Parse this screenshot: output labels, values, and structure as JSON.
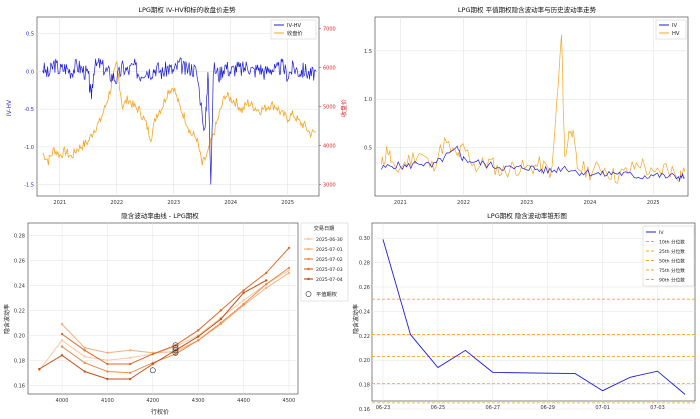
{
  "charts": [
    {
      "id": "p1",
      "title": "LPG期权 IV-HV和标的收盘价走势",
      "ylabel": "IV-HV",
      "y2label": "收盘价",
      "x_ticks": [
        "2021",
        "2022",
        "2023",
        "2024",
        "2025"
      ],
      "y_ticks": [
        "0.5",
        "0.0",
        "-0.5",
        "-1.0",
        "-1.5"
      ],
      "y2_ticks": [
        "7000",
        "6000",
        "5000",
        "4000",
        "3000"
      ],
      "legend": [
        "IV-HV",
        "收盘价"
      ],
      "colors": {
        "ivhv": "#1f1fd6",
        "close": "#f5a623",
        "y2axis": "#d62728"
      }
    },
    {
      "id": "p2",
      "title": "LPG期权 平值期权隐含波动率与历史波动率走势",
      "x_ticks": [
        "2021",
        "2022",
        "2023",
        "2024",
        "2025"
      ],
      "y_ticks": [
        "1.5",
        "1.0",
        "0.5"
      ],
      "legend": [
        "IV",
        "HV"
      ],
      "colors": {
        "iv": "#1f1fd6",
        "hv": "#f5a623"
      }
    },
    {
      "id": "p3",
      "title": "隐含波动率曲线 - LPG期权",
      "xlabel": "行权价",
      "ylabel": "隐含波动率",
      "x_ticks": [
        "4000",
        "4100",
        "4200",
        "4300",
        "4400",
        "4500"
      ],
      "y_ticks": [
        "0.28",
        "0.26",
        "0.24",
        "0.22",
        "0.20",
        "0.18",
        "0.16"
      ],
      "legend_title": "交易日期",
      "legend": [
        "2025-06-30",
        "2025-07-01",
        "2025-07-02",
        "2025-07-03",
        "2025-07-04"
      ],
      "atm_label": "平值期权",
      "colors": [
        "#f7c9a4",
        "#f4b07e",
        "#ef8a47",
        "#e06a2a",
        "#c4511a"
      ]
    },
    {
      "id": "p4",
      "title": "LPG期权 隐含波动率锥形图",
      "ylabel": "隐含波动率",
      "x_ticks": [
        "06-23",
        "06-25",
        "06-27",
        "06-29",
        "07-01",
        "07-03"
      ],
      "y_ticks": [
        "0.30",
        "0.28",
        "0.26",
        "0.24",
        "0.22",
        "0.20",
        "0.18",
        "0.16"
      ],
      "legend": [
        "IV",
        "10th 分位数",
        "25th 分位数",
        "50th 分位数",
        "75th 分位数",
        "90th 分位数"
      ],
      "colors": {
        "iv": "#1f1fd6",
        "pct": "#f5a623"
      }
    }
  ],
  "chart_data": [
    {
      "type": "line",
      "title": "LPG期权 IV-HV和标的收盘价走势",
      "xlim": [
        2020.6,
        2025.55
      ],
      "ylim": [
        -1.65,
        0.72
      ],
      "y2lim": [
        2700,
        7300
      ],
      "series": [
        {
          "name": "IV-HV",
          "axis": "left",
          "x": [
            2020.7,
            2020.8,
            2020.9,
            2021.0,
            2021.1,
            2021.2,
            2021.3,
            2021.4,
            2021.5,
            2021.55,
            2021.6,
            2021.7,
            2021.8,
            2021.9,
            2022.0,
            2022.1,
            2022.2,
            2022.3,
            2022.4,
            2022.5,
            2022.6,
            2022.7,
            2022.8,
            2022.9,
            2023.0,
            2023.1,
            2023.2,
            2023.3,
            2023.4,
            2023.55,
            2023.6,
            2023.65,
            2023.7,
            2023.8,
            2023.9,
            2024.0,
            2024.1,
            2024.2,
            2024.3,
            2024.4,
            2024.5,
            2024.6,
            2024.7,
            2024.8,
            2024.9,
            2025.0,
            2025.1,
            2025.2,
            2025.3,
            2025.4,
            2025.5
          ],
          "y": [
            0.05,
            -0.05,
            0.1,
            0.02,
            0.05,
            0.0,
            0.08,
            0.02,
            -0.05,
            -0.35,
            0.05,
            0.1,
            0.02,
            -0.05,
            -0.1,
            0.05,
            0.0,
            0.08,
            -0.05,
            0.02,
            0.0,
            0.05,
            -0.02,
            0.05,
            0.0,
            0.1,
            0.02,
            0.05,
            0.0,
            -0.8,
            0.02,
            -1.4,
            0.05,
            -0.05,
            0.08,
            0.0,
            0.05,
            0.02,
            0.08,
            0.0,
            0.05,
            -0.02,
            0.05,
            0.0,
            0.08,
            -0.05,
            0.05,
            0.0,
            0.02,
            -0.05,
            0.0
          ]
        },
        {
          "name": "收盘价",
          "axis": "right",
          "x": [
            2020.7,
            2020.8,
            2020.9,
            2021.0,
            2021.1,
            2021.2,
            2021.3,
            2021.4,
            2021.5,
            2021.6,
            2021.7,
            2021.8,
            2021.9,
            2022.0,
            2022.1,
            2022.2,
            2022.3,
            2022.4,
            2022.5,
            2022.6,
            2022.7,
            2022.8,
            2022.9,
            2023.0,
            2023.1,
            2023.2,
            2023.3,
            2023.4,
            2023.5,
            2023.6,
            2023.7,
            2023.8,
            2023.9,
            2024.0,
            2024.1,
            2024.2,
            2024.3,
            2024.4,
            2024.5,
            2024.6,
            2024.7,
            2024.8,
            2024.9,
            2025.0,
            2025.1,
            2025.2,
            2025.3,
            2025.4,
            2025.5
          ],
          "y": [
            3800,
            3600,
            3900,
            3750,
            3850,
            3700,
            3900,
            4000,
            4100,
            4400,
            4600,
            5000,
            5500,
            6100,
            5000,
            5200,
            5000,
            4900,
            4600,
            4200,
            4800,
            5000,
            5400,
            5500,
            5000,
            4700,
            4300,
            4200,
            3500,
            3800,
            4300,
            4800,
            5300,
            5200,
            5100,
            4900,
            5100,
            5000,
            4900,
            4950,
            5050,
            5000,
            4800,
            4700,
            4800,
            4600,
            4500,
            4300,
            4350
          ]
        }
      ]
    },
    {
      "type": "line",
      "title": "LPG期权 平值期权隐含波动率与历史波动率走势",
      "xlim": [
        2020.6,
        2025.55
      ],
      "ylim": [
        0.0,
        1.85
      ],
      "series": [
        {
          "name": "IV",
          "x": [
            2020.7,
            2020.9,
            2021.1,
            2021.3,
            2021.5,
            2021.7,
            2021.9,
            2022.0,
            2022.2,
            2022.4,
            2022.6,
            2022.8,
            2023.0,
            2023.2,
            2023.4,
            2023.6,
            2023.8,
            2024.0,
            2024.2,
            2024.4,
            2024.6,
            2024.8,
            2025.0,
            2025.2,
            2025.4,
            2025.5
          ],
          "y": [
            0.28,
            0.32,
            0.3,
            0.35,
            0.3,
            0.4,
            0.48,
            0.38,
            0.35,
            0.32,
            0.3,
            0.28,
            0.3,
            0.27,
            0.26,
            0.3,
            0.25,
            0.24,
            0.22,
            0.24,
            0.22,
            0.2,
            0.22,
            0.2,
            0.2,
            0.19
          ]
        },
        {
          "name": "HV",
          "x": [
            2020.7,
            2020.8,
            2020.9,
            2021.1,
            2021.3,
            2021.5,
            2021.7,
            2021.9,
            2022.0,
            2022.2,
            2022.4,
            2022.6,
            2022.8,
            2023.0,
            2023.2,
            2023.4,
            2023.55,
            2023.6,
            2023.7,
            2023.8,
            2024.0,
            2024.2,
            2024.4,
            2024.6,
            2024.8,
            2025.0,
            2025.2,
            2025.4,
            2025.5
          ],
          "y": [
            0.3,
            0.5,
            0.25,
            0.35,
            0.45,
            0.3,
            0.55,
            0.4,
            0.5,
            0.3,
            0.35,
            0.25,
            0.3,
            0.28,
            0.32,
            0.25,
            1.65,
            0.4,
            0.75,
            0.3,
            0.25,
            0.3,
            0.2,
            0.25,
            0.35,
            0.2,
            0.3,
            0.22,
            0.25
          ]
        }
      ]
    },
    {
      "type": "line",
      "title": "隐含波动率曲线 - LPG期权",
      "xlabel": "行权价",
      "ylabel": "隐含波动率",
      "xlim": [
        3925,
        4520
      ],
      "ylim": [
        0.153,
        0.29
      ],
      "series": [
        {
          "name": "2025-06-30",
          "x": [
            3950,
            4000,
            4050,
            4100,
            4150,
            4200,
            4250,
            4300,
            4350,
            4400,
            4450,
            4500
          ],
          "y": [
            0.172,
            0.196,
            0.183,
            0.18,
            0.182,
            0.185,
            0.191,
            0.2,
            0.214,
            0.228,
            0.241,
            0.252
          ]
        },
        {
          "name": "2025-07-01",
          "x": [
            4000,
            4050,
            4100,
            4150,
            4200,
            4250,
            4300,
            4350,
            4400,
            4450,
            4500
          ],
          "y": [
            0.209,
            0.19,
            0.186,
            0.188,
            0.186,
            0.187,
            0.196,
            0.209,
            0.224,
            0.238,
            0.25
          ]
        },
        {
          "name": "2025-07-02",
          "x": [
            4000,
            4050,
            4100,
            4150,
            4200,
            4250,
            4300,
            4350,
            4400,
            4450,
            4500
          ],
          "y": [
            0.191,
            0.178,
            0.171,
            0.17,
            0.178,
            0.185,
            0.196,
            0.21,
            0.225,
            0.241,
            0.254
          ]
        },
        {
          "name": "2025-07-03",
          "x": [
            4000,
            4050,
            4100,
            4150,
            4200,
            4250,
            4300,
            4350,
            4400,
            4450,
            4500
          ],
          "y": [
            0.201,
            0.188,
            0.177,
            0.177,
            0.185,
            0.192,
            0.204,
            0.22,
            0.236,
            0.25,
            0.27
          ]
        },
        {
          "name": "2025-07-04",
          "x": [
            3950,
            4000,
            4050,
            4100,
            4150,
            4200,
            4250,
            4300,
            4350,
            4400,
            4450
          ],
          "y": [
            0.173,
            0.184,
            0.171,
            0.165,
            0.165,
            0.177,
            0.188,
            0.199,
            0.213,
            0.234,
            0.244
          ]
        }
      ],
      "atm_points": [
        {
          "x": 4200,
          "y": 0.172
        },
        {
          "x": 4250,
          "y": 0.186
        },
        {
          "x": 4250,
          "y": 0.188
        },
        {
          "x": 4250,
          "y": 0.19
        },
        {
          "x": 4250,
          "y": 0.192
        }
      ]
    },
    {
      "type": "line",
      "title": "LPG期权 隐含波动率锥形图",
      "ylabel": "隐含波动率",
      "x_categories": [
        "06-23",
        "06-24",
        "06-25",
        "06-26",
        "06-27",
        "06-28",
        "06-29",
        "06-30",
        "07-01",
        "07-02",
        "07-03",
        "07-04"
      ],
      "ylim": [
        0.16,
        0.31
      ],
      "series": [
        {
          "name": "IV",
          "x": [
            "06-23",
            "06-24",
            "06-25",
            "06-26",
            "06-27",
            "06-30",
            "07-01",
            "07-02",
            "07-03",
            "07-04"
          ],
          "y": [
            0.299,
            0.221,
            0.194,
            0.208,
            0.19,
            0.189,
            0.175,
            0.186,
            0.191,
            0.172
          ]
        }
      ],
      "percentiles": [
        {
          "name": "10th 分位数",
          "value": 0.181
        },
        {
          "name": "25th 分位数",
          "value": 0.203
        },
        {
          "name": "50th 分位数",
          "value": 0.221
        },
        {
          "name": "75th 分位数",
          "value": 0.25
        },
        {
          "name": "90th 分位数",
          "value": 0.165
        }
      ]
    }
  ]
}
